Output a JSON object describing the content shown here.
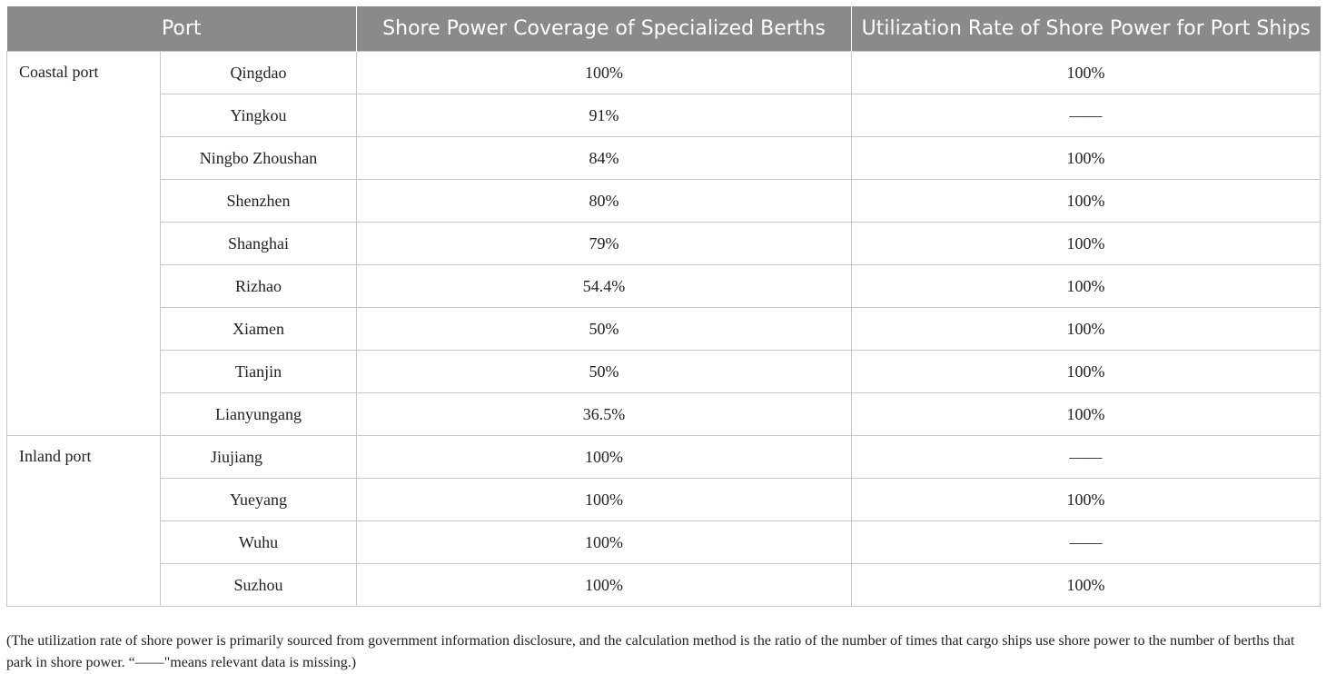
{
  "table": {
    "headers": [
      "Port",
      "Shore Power Coverage of Specialized Berths",
      "Utilization Rate of Shore Power for Port Ships"
    ],
    "groups": [
      {
        "name": "Coastal port",
        "rows": [
          {
            "port": "Qingdao",
            "coverage": "100%",
            "utilization": "100%"
          },
          {
            "port": "Yingkou",
            "coverage": "91%",
            "utilization": "——"
          },
          {
            "port": "Ningbo Zhoushan",
            "coverage": "84%",
            "utilization": "100%"
          },
          {
            "port": "Shenzhen",
            "coverage": "80%",
            "utilization": "100%"
          },
          {
            "port": "Shanghai",
            "coverage": "79%",
            "utilization": "100%"
          },
          {
            "port": "Rizhao",
            "coverage": "54.4%",
            "utilization": "100%"
          },
          {
            "port": "Xiamen",
            "coverage": "50%",
            "utilization": "100%"
          },
          {
            "port": "Tianjin",
            "coverage": "50%",
            "utilization": "100%"
          },
          {
            "port": "Lianyungang",
            "coverage": "36.5%",
            "utilization": "100%"
          }
        ]
      },
      {
        "name": "Inland port",
        "rows": [
          {
            "port": "Jiujiang",
            "coverage": "100%",
            "utilization": "——"
          },
          {
            "port": "Yueyang",
            "coverage": "100%",
            "utilization": "100%"
          },
          {
            "port": "Wuhu",
            "coverage": "100%",
            "utilization": "——"
          },
          {
            "port": "Suzhou",
            "coverage": "100%",
            "utilization": "100%"
          }
        ]
      }
    ]
  },
  "note": "(The utilization rate of shore power is primarily sourced from government information disclosure, and the calculation method is the ratio of the number of times that cargo ships use shore power to the number of berths that park in shore power. “——\"means relevant data is missing.)"
}
